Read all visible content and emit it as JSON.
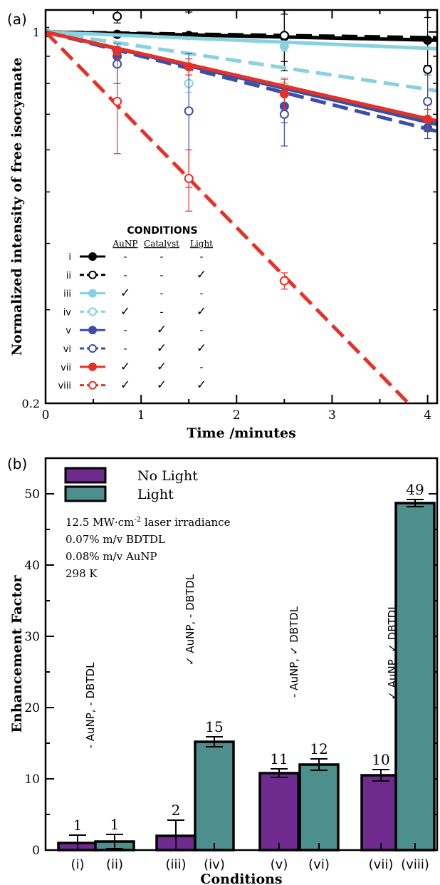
{
  "panel_a_label": "(a)",
  "panel_b_label": "(b)",
  "chart_data": [
    {
      "type": "line",
      "xlabel": "Time /minutes",
      "ylabel": "Normalized intensity of free isocyanate",
      "xlim": [
        0,
        4.1
      ],
      "ylim": [
        0.2,
        1.1
      ],
      "y_scale": "log",
      "x_ticks": [
        "0",
        "1",
        "2",
        "3",
        "4"
      ],
      "y_ticks": [
        "0.2",
        "1"
      ],
      "legend": {
        "title": "CONDITIONS",
        "columns": [
          "AuNP",
          "Catalyst",
          "Light"
        ],
        "placement": "bottom-left"
      },
      "series": [
        {
          "name": "i",
          "color": "#000000",
          "filled": true,
          "dashed": false,
          "auNP": "-",
          "catalyst": "-",
          "light": "-",
          "fit": [
            [
              0,
              1.0
            ],
            [
              4.1,
              0.965
            ]
          ],
          "points": [
            {
              "x": 0,
              "y": 1.0,
              "err": 0.02
            },
            {
              "x": 0.75,
              "y": 0.99,
              "err": 0.01
            },
            {
              "x": 1.5,
              "y": 0.985,
              "err": 0.01
            },
            {
              "x": 2.5,
              "y": 0.98,
              "err": 0.1
            },
            {
              "x": 4.0,
              "y": 0.965,
              "err": 0.1
            }
          ]
        },
        {
          "name": "ii",
          "color": "#000000",
          "filled": false,
          "dashed": true,
          "auNP": "-",
          "catalyst": "-",
          "light": "✓",
          "fit": [
            [
              0,
              1.0
            ],
            [
              4.1,
              0.975
            ]
          ],
          "points": [
            {
              "x": 0,
              "y": 1.0,
              "err": 0.02
            },
            {
              "x": 0.75,
              "y": 1.07,
              "err": 0.03
            },
            {
              "x": 1.5,
              "y": 1.12,
              "err": 0.03
            },
            {
              "x": 2.5,
              "y": 0.985,
              "err": 0.14
            },
            {
              "x": 4.0,
              "y": 0.85,
              "err": 0.12
            }
          ]
        },
        {
          "name": "iii",
          "color": "#87d2e0",
          "filled": true,
          "dashed": false,
          "auNP": "✓",
          "catalyst": "-",
          "light": "-",
          "fit": [
            [
              0,
              1.0
            ],
            [
              4.1,
              0.93
            ]
          ],
          "points": [
            {
              "x": 0,
              "y": 1.0,
              "err": 0.01
            },
            {
              "x": 2.5,
              "y": 0.94,
              "err": 0.02
            }
          ]
        },
        {
          "name": "iv",
          "color": "#87d2e0",
          "filled": false,
          "dashed": true,
          "auNP": "✓",
          "catalyst": "-",
          "light": "✓",
          "fit": [
            [
              0,
              1.0
            ],
            [
              4.1,
              0.775
            ]
          ],
          "points": [
            {
              "x": 0,
              "y": 1.2,
              "err": 0.02
            },
            {
              "x": 1.5,
              "y": 0.8,
              "err": 0.03
            },
            {
              "x": 2.5,
              "y": 0.79,
              "err": 0.03
            }
          ]
        },
        {
          "name": "v",
          "color": "#3a4fa6",
          "filled": true,
          "dashed": false,
          "auNP": "-",
          "catalyst": "✓",
          "light": "-",
          "fit": [
            [
              0,
              1.0
            ],
            [
              4.1,
              0.67
            ]
          ],
          "points": [
            {
              "x": 0.75,
              "y": 0.9,
              "err": 0.03
            },
            {
              "x": 2.5,
              "y": 0.725,
              "err": 0.05
            },
            {
              "x": 4.0,
              "y": 0.66,
              "err": 0.03
            }
          ]
        },
        {
          "name": "vi",
          "color": "#3a4fa6",
          "filled": false,
          "dashed": true,
          "auNP": "-",
          "catalyst": "✓",
          "light": "✓",
          "fit": [
            [
              0,
              1.0
            ],
            [
              4.1,
              0.65
            ]
          ],
          "points": [
            {
              "x": 0.75,
              "y": 0.87,
              "err": 0.07
            },
            {
              "x": 1.5,
              "y": 0.71,
              "err": 0.2
            },
            {
              "x": 2.5,
              "y": 0.7,
              "err": 0.09
            },
            {
              "x": 4.0,
              "y": 0.74,
              "err": 0.09
            }
          ]
        },
        {
          "name": "vii",
          "color": "#e53228",
          "filled": true,
          "dashed": false,
          "auNP": "✓",
          "catalyst": "✓",
          "light": "-",
          "fit": [
            [
              0,
              1.0
            ],
            [
              4.1,
              0.68
            ]
          ],
          "points": [
            {
              "x": 0.75,
              "y": 0.92,
              "err": 0.03
            },
            {
              "x": 1.5,
              "y": 0.86,
              "err": 0.03
            },
            {
              "x": 2.5,
              "y": 0.765,
              "err": 0.05
            },
            {
              "x": 4.0,
              "y": 0.685,
              "err": 0.03
            }
          ]
        },
        {
          "name": "viii",
          "color": "#e53228",
          "filled": false,
          "dashed": true,
          "auNP": "✓",
          "catalyst": "✓",
          "light": "✓",
          "fit": [
            [
              0,
              1.0
            ],
            [
              3.8,
              0.2
            ]
          ],
          "points": [
            {
              "x": 0.75,
              "y": 0.74,
              "err": 0.15
            },
            {
              "x": 1.5,
              "y": 0.53,
              "err": 0.07
            },
            {
              "x": 2.5,
              "y": 0.34,
              "err": 0.012
            }
          ]
        }
      ]
    },
    {
      "type": "bar",
      "xlabel": "Conditions",
      "ylabel": "Enhancement Factor",
      "ylim": [
        0,
        55
      ],
      "y_ticks": [
        "0",
        "10",
        "20",
        "30",
        "40",
        "50"
      ],
      "legend_placement": "top-left",
      "series": [
        {
          "name": "No Light",
          "color": "#6e2a8c"
        },
        {
          "name": "Light",
          "color": "#4d8f8c"
        }
      ],
      "notes": {
        "irradiance_prefix": "12.5 MW·cm",
        "irradiance_exp": "-2",
        "irradiance_suffix": " laser irradiance",
        "bdtdl": "0.07% m/v BDTDL",
        "aunp": "0.08% m/v AuNP",
        "temp": "298 K"
      },
      "groups": [
        {
          "label": "- AuNP, - DBTDL",
          "bars": [
            {
              "cat": "(i)",
              "series": "No Light",
              "value": 1,
              "err": 1.1,
              "value_label": "1"
            },
            {
              "cat": "(ii)",
              "series": "Light",
              "value": 1.2,
              "err": 1.0,
              "value_label": "1"
            }
          ]
        },
        {
          "label": "✓ AuNP, - DBTDL",
          "bars": [
            {
              "cat": "(iii)",
              "series": "No Light",
              "value": 2,
              "err": 2.2,
              "value_label": "2"
            },
            {
              "cat": "(iv)",
              "series": "Light",
              "value": 15.2,
              "err": 0.7,
              "value_label": "15"
            }
          ]
        },
        {
          "label": "- AuNP, ✓ DBTDL",
          "bars": [
            {
              "cat": "(v)",
              "series": "No Light",
              "value": 10.8,
              "err": 0.6,
              "value_label": "11"
            },
            {
              "cat": "(vi)",
              "series": "Light",
              "value": 12,
              "err": 0.8,
              "value_label": "12"
            }
          ]
        },
        {
          "label": "✓ AuNP, ✓ DBTDL",
          "bars": [
            {
              "cat": "(vii)",
              "series": "No Light",
              "value": 10.5,
              "err": 0.8,
              "value_label": "10"
            },
            {
              "cat": "(viii)",
              "series": "Light",
              "value": 48.7,
              "err": 0.5,
              "value_label": "49"
            }
          ]
        }
      ]
    }
  ]
}
